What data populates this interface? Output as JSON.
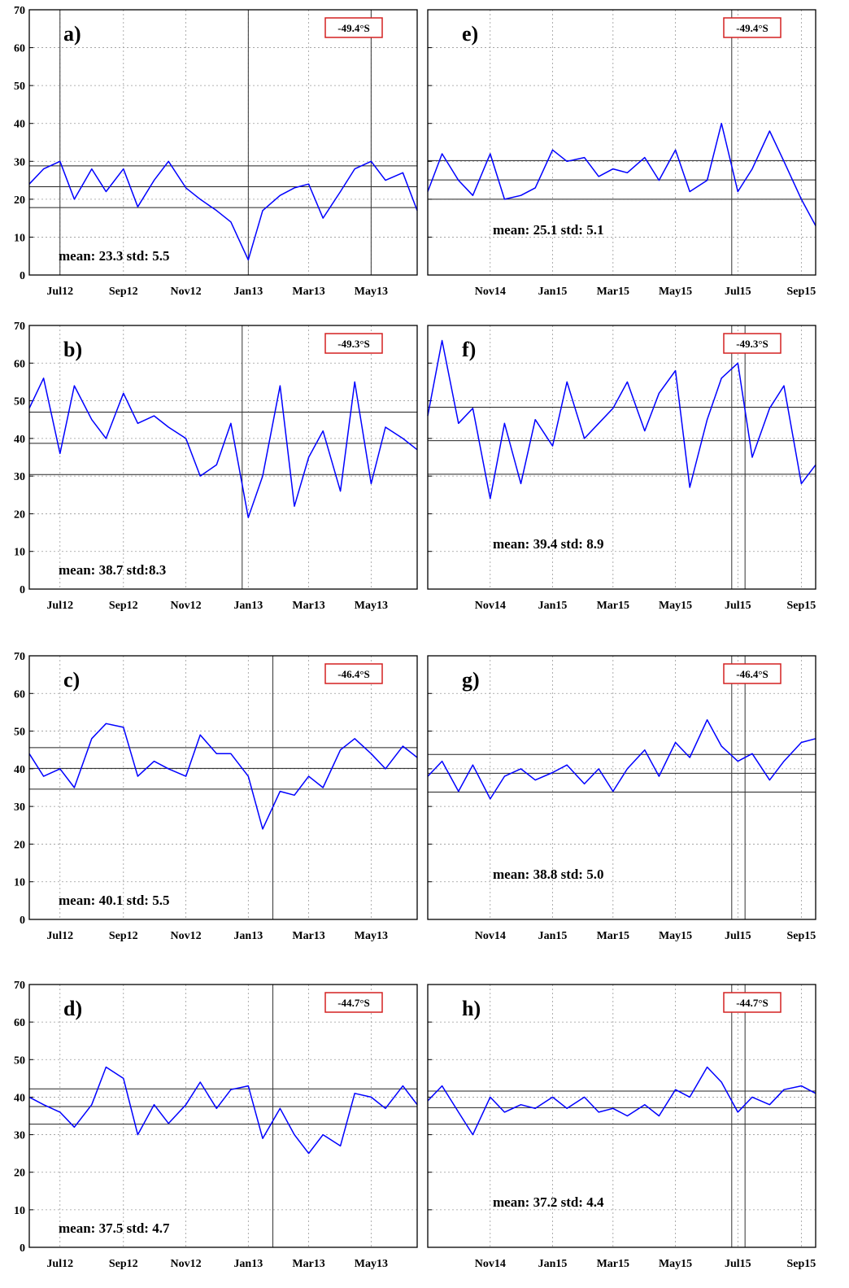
{
  "panel_axes": {
    "y_ticks": [
      0,
      10,
      20,
      30,
      40,
      50,
      60,
      70
    ],
    "ylim": [
      0,
      70
    ],
    "left_xlim": [
      "2012-06-01",
      "2013-06-15"
    ],
    "left_x_ticks": [
      {
        "label": "Jul12",
        "date": "2012-07-01"
      },
      {
        "label": "Sep12",
        "date": "2012-09-01"
      },
      {
        "label": "Nov12",
        "date": "2012-11-01"
      },
      {
        "label": "Jan13",
        "date": "2013-01-01"
      },
      {
        "label": "Mar13",
        "date": "2013-03-01"
      },
      {
        "label": "May13",
        "date": "2013-05-01"
      }
    ],
    "right_xlim": [
      "2014-09-01",
      "2015-09-15"
    ],
    "right_x_ticks": [
      {
        "label": "Nov14",
        "date": "2014-11-01"
      },
      {
        "label": "Jan15",
        "date": "2015-01-01"
      },
      {
        "label": "Mar15",
        "date": "2015-03-01"
      },
      {
        "label": "May15",
        "date": "2015-05-01"
      },
      {
        "label": "Jul15",
        "date": "2015-07-01"
      },
      {
        "label": "Sep15",
        "date": "2015-09-01"
      }
    ],
    "grid": true,
    "line_color": "#0000ff",
    "latitude_box_color": "#d42020"
  },
  "chart_data": [
    {
      "type": "line",
      "panel": "a)",
      "latitude": "-49.4°S",
      "column": "left",
      "mean": 23.3,
      "std": 5.5,
      "stats_text": "mean: 23.3 std: 5.5",
      "event_dates": [
        "2012-07-01",
        "2013-01-01",
        "2013-05-01"
      ],
      "x": [
        "2012-06-01",
        "2012-06-15",
        "2012-07-01",
        "2012-07-15",
        "2012-08-01",
        "2012-08-15",
        "2012-09-01",
        "2012-09-15",
        "2012-10-01",
        "2012-10-15",
        "2012-11-01",
        "2012-11-15",
        "2012-12-01",
        "2012-12-15",
        "2013-01-01",
        "2013-01-15",
        "2013-02-01",
        "2013-02-15",
        "2013-03-01",
        "2013-03-15",
        "2013-04-01",
        "2013-04-15",
        "2013-05-01",
        "2013-05-15",
        "2013-06-01",
        "2013-06-15"
      ],
      "y": [
        24,
        28,
        30,
        20,
        28,
        22,
        28,
        18,
        25,
        30,
        23,
        20,
        17,
        14,
        4,
        17,
        21,
        23,
        24,
        15,
        22,
        28,
        30,
        25,
        27,
        17
      ]
    },
    {
      "type": "line",
      "panel": "b)",
      "latitude": "-49.3°S",
      "column": "left",
      "mean": 38.7,
      "std": 8.3,
      "stats_text": "mean: 38.7 std:8.3",
      "event_dates": [
        "2012-12-26"
      ],
      "x": [
        "2012-06-01",
        "2012-06-15",
        "2012-07-01",
        "2012-07-15",
        "2012-08-01",
        "2012-08-15",
        "2012-09-01",
        "2012-09-15",
        "2012-10-01",
        "2012-10-15",
        "2012-11-01",
        "2012-11-15",
        "2012-12-01",
        "2012-12-15",
        "2013-01-01",
        "2013-01-15",
        "2013-02-01",
        "2013-02-15",
        "2013-03-01",
        "2013-03-15",
        "2013-04-01",
        "2013-04-15",
        "2013-05-01",
        "2013-05-15",
        "2013-06-01",
        "2013-06-15"
      ],
      "y": [
        48,
        56,
        36,
        54,
        45,
        40,
        52,
        44,
        46,
        43,
        40,
        30,
        33,
        44,
        19,
        30,
        54,
        22,
        35,
        42,
        26,
        55,
        28,
        43,
        40,
        37
      ]
    },
    {
      "type": "line",
      "panel": "c)",
      "latitude": "-46.4°S",
      "column": "left",
      "mean": 40.1,
      "std": 5.5,
      "stats_text": "mean: 40.1 std: 5.5",
      "event_dates": [
        "2013-01-25"
      ],
      "x": [
        "2012-06-01",
        "2012-06-15",
        "2012-07-01",
        "2012-07-15",
        "2012-08-01",
        "2012-08-15",
        "2012-09-01",
        "2012-09-15",
        "2012-10-01",
        "2012-10-15",
        "2012-11-01",
        "2012-11-15",
        "2012-12-01",
        "2012-12-15",
        "2013-01-01",
        "2013-01-15",
        "2013-02-01",
        "2013-02-15",
        "2013-03-01",
        "2013-03-15",
        "2013-04-01",
        "2013-04-15",
        "2013-05-01",
        "2013-05-15",
        "2013-06-01",
        "2013-06-15"
      ],
      "y": [
        44,
        38,
        40,
        35,
        48,
        52,
        51,
        38,
        42,
        40,
        38,
        49,
        44,
        44,
        38,
        24,
        34,
        33,
        38,
        35,
        45,
        48,
        44,
        40,
        46,
        43
      ]
    },
    {
      "type": "line",
      "panel": "d)",
      "latitude": "-44.7°S",
      "column": "left",
      "mean": 37.5,
      "std": 4.7,
      "stats_text": "mean: 37.5 std: 4.7",
      "event_dates": [
        "2013-01-25"
      ],
      "x": [
        "2012-06-01",
        "2012-06-15",
        "2012-07-01",
        "2012-07-15",
        "2012-08-01",
        "2012-08-15",
        "2012-09-01",
        "2012-09-15",
        "2012-10-01",
        "2012-10-15",
        "2012-11-01",
        "2012-11-15",
        "2012-12-01",
        "2012-12-15",
        "2013-01-01",
        "2013-01-15",
        "2013-02-01",
        "2013-02-15",
        "2013-03-01",
        "2013-03-15",
        "2013-04-01",
        "2013-04-15",
        "2013-05-01",
        "2013-05-15",
        "2013-06-01",
        "2013-06-15"
      ],
      "y": [
        40,
        38,
        36,
        32,
        38,
        48,
        45,
        30,
        38,
        33,
        38,
        44,
        37,
        42,
        43,
        29,
        37,
        30,
        25,
        30,
        27,
        41,
        40,
        37,
        43,
        38
      ]
    },
    {
      "type": "line",
      "panel": "e)",
      "latitude": "-49.4°S",
      "column": "right",
      "mean": 25.1,
      "std": 5.1,
      "stats_text": "mean: 25.1 std: 5.1",
      "event_dates": [
        "2015-06-25"
      ],
      "x": [
        "2014-09-01",
        "2014-09-15",
        "2014-10-01",
        "2014-10-15",
        "2014-11-01",
        "2014-11-15",
        "2014-12-01",
        "2014-12-15",
        "2015-01-01",
        "2015-01-15",
        "2015-02-01",
        "2015-02-15",
        "2015-03-01",
        "2015-03-15",
        "2015-04-01",
        "2015-04-15",
        "2015-05-01",
        "2015-05-15",
        "2015-06-01",
        "2015-06-15",
        "2015-07-01",
        "2015-07-15",
        "2015-08-01",
        "2015-08-15",
        "2015-09-01",
        "2015-09-15"
      ],
      "y": [
        22,
        32,
        25,
        21,
        32,
        20,
        21,
        23,
        33,
        30,
        31,
        26,
        28,
        27,
        31,
        25,
        33,
        22,
        25,
        40,
        22,
        28,
        38,
        30,
        20,
        13
      ]
    },
    {
      "type": "line",
      "panel": "f)",
      "latitude": "-49.3°S",
      "column": "right",
      "mean": 39.4,
      "std": 8.9,
      "stats_text": "mean: 39.4 std: 8.9",
      "event_dates": [
        "2015-06-25",
        "2015-07-08"
      ],
      "x": [
        "2014-09-01",
        "2014-09-15",
        "2014-10-01",
        "2014-10-15",
        "2014-11-01",
        "2014-11-15",
        "2014-12-01",
        "2014-12-15",
        "2015-01-01",
        "2015-01-15",
        "2015-02-01",
        "2015-02-15",
        "2015-03-01",
        "2015-03-15",
        "2015-04-01",
        "2015-04-15",
        "2015-05-01",
        "2015-05-15",
        "2015-06-01",
        "2015-06-15",
        "2015-07-01",
        "2015-07-15",
        "2015-08-01",
        "2015-08-15",
        "2015-09-01",
        "2015-09-15"
      ],
      "y": [
        46,
        66,
        44,
        48,
        24,
        44,
        28,
        45,
        38,
        55,
        40,
        44,
        48,
        55,
        42,
        52,
        58,
        27,
        45,
        56,
        60,
        35,
        48,
        54,
        28,
        33
      ]
    },
    {
      "type": "line",
      "panel": "g)",
      "latitude": "-46.4°S",
      "column": "right",
      "mean": 38.8,
      "std": 5.0,
      "stats_text": "mean: 38.8 std: 5.0",
      "event_dates": [
        "2015-06-25",
        "2015-07-08"
      ],
      "x": [
        "2014-09-01",
        "2014-09-15",
        "2014-10-01",
        "2014-10-15",
        "2014-11-01",
        "2014-11-15",
        "2014-12-01",
        "2014-12-15",
        "2015-01-01",
        "2015-01-15",
        "2015-02-01",
        "2015-02-15",
        "2015-03-01",
        "2015-03-15",
        "2015-04-01",
        "2015-04-15",
        "2015-05-01",
        "2015-05-15",
        "2015-06-01",
        "2015-06-15",
        "2015-07-01",
        "2015-07-15",
        "2015-08-01",
        "2015-08-15",
        "2015-09-01",
        "2015-09-15"
      ],
      "y": [
        38,
        42,
        34,
        41,
        32,
        38,
        40,
        37,
        39,
        41,
        36,
        40,
        34,
        40,
        45,
        38,
        47,
        43,
        53,
        46,
        42,
        44,
        37,
        42,
        47,
        48
      ]
    },
    {
      "type": "line",
      "panel": "h)",
      "latitude": "-44.7°S",
      "column": "right",
      "mean": 37.2,
      "std": 4.4,
      "stats_text": "mean: 37.2 std: 4.4",
      "event_dates": [
        "2015-06-25",
        "2015-07-08"
      ],
      "x": [
        "2014-09-01",
        "2014-09-15",
        "2014-10-01",
        "2014-10-15",
        "2014-11-01",
        "2014-11-15",
        "2014-12-01",
        "2014-12-15",
        "2015-01-01",
        "2015-01-15",
        "2015-02-01",
        "2015-02-15",
        "2015-03-01",
        "2015-03-15",
        "2015-04-01",
        "2015-04-15",
        "2015-05-01",
        "2015-05-15",
        "2015-06-01",
        "2015-06-15",
        "2015-07-01",
        "2015-07-15",
        "2015-08-01",
        "2015-08-15",
        "2015-09-01",
        "2015-09-15"
      ],
      "y": [
        39,
        43,
        36,
        30,
        40,
        36,
        38,
        37,
        40,
        37,
        40,
        36,
        37,
        35,
        38,
        35,
        42,
        40,
        48,
        44,
        36,
        40,
        38,
        42,
        43,
        41
      ]
    }
  ]
}
